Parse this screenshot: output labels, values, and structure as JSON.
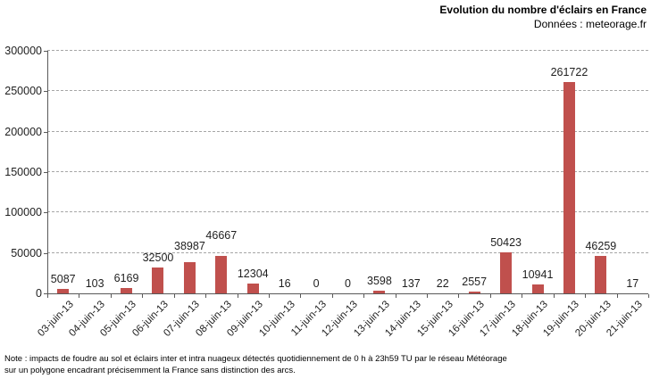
{
  "header": {
    "title": "Evolution du nombre d'éclairs en France",
    "subtitle": "Données : meteorage.fr"
  },
  "chart_data": {
    "type": "bar",
    "title": "Evolution du nombre d'éclairs en France",
    "subtitle": "Données : meteorage.fr",
    "categories": [
      "03-juin-13",
      "04-juin-13",
      "05-juin-13",
      "06-juin-13",
      "07-juin-13",
      "08-juin-13",
      "09-juin-13",
      "10-juin-13",
      "11-juin-13",
      "12-juin-13",
      "13-juin-13",
      "14-juin-13",
      "15-juin-13",
      "16-juin-13",
      "17-juin-13",
      "18-juin-13",
      "19-juin-13",
      "20-juin-13",
      "21-juin-13"
    ],
    "values": [
      5087,
      103,
      6169,
      32500,
      38987,
      46667,
      12304,
      16,
      0,
      0,
      3598,
      137,
      22,
      2557,
      50423,
      10941,
      261722,
      46259,
      17
    ],
    "xlabel": "",
    "ylabel": "",
    "ylim": [
      0,
      300000
    ],
    "yticks": [
      0,
      50000,
      100000,
      150000,
      200000,
      250000,
      300000
    ],
    "grid": "horizontal-dashed",
    "legend": "none",
    "data_labels": true,
    "bar_color": "#C0504D"
  },
  "note": {
    "line1": "Note : impacts de foudre au sol et éclairs inter et intra nuageux détectés quotidiennement de 0 h à 23h59 TU par le réseau Météorage",
    "line2": "sur un polygone encadrant précisemment la France sans distinction des arcs."
  },
  "colors": {
    "bar": "#C0504D",
    "gridline": "#A6A6A6",
    "axis": "#595959",
    "text": "#1F1F1F"
  }
}
